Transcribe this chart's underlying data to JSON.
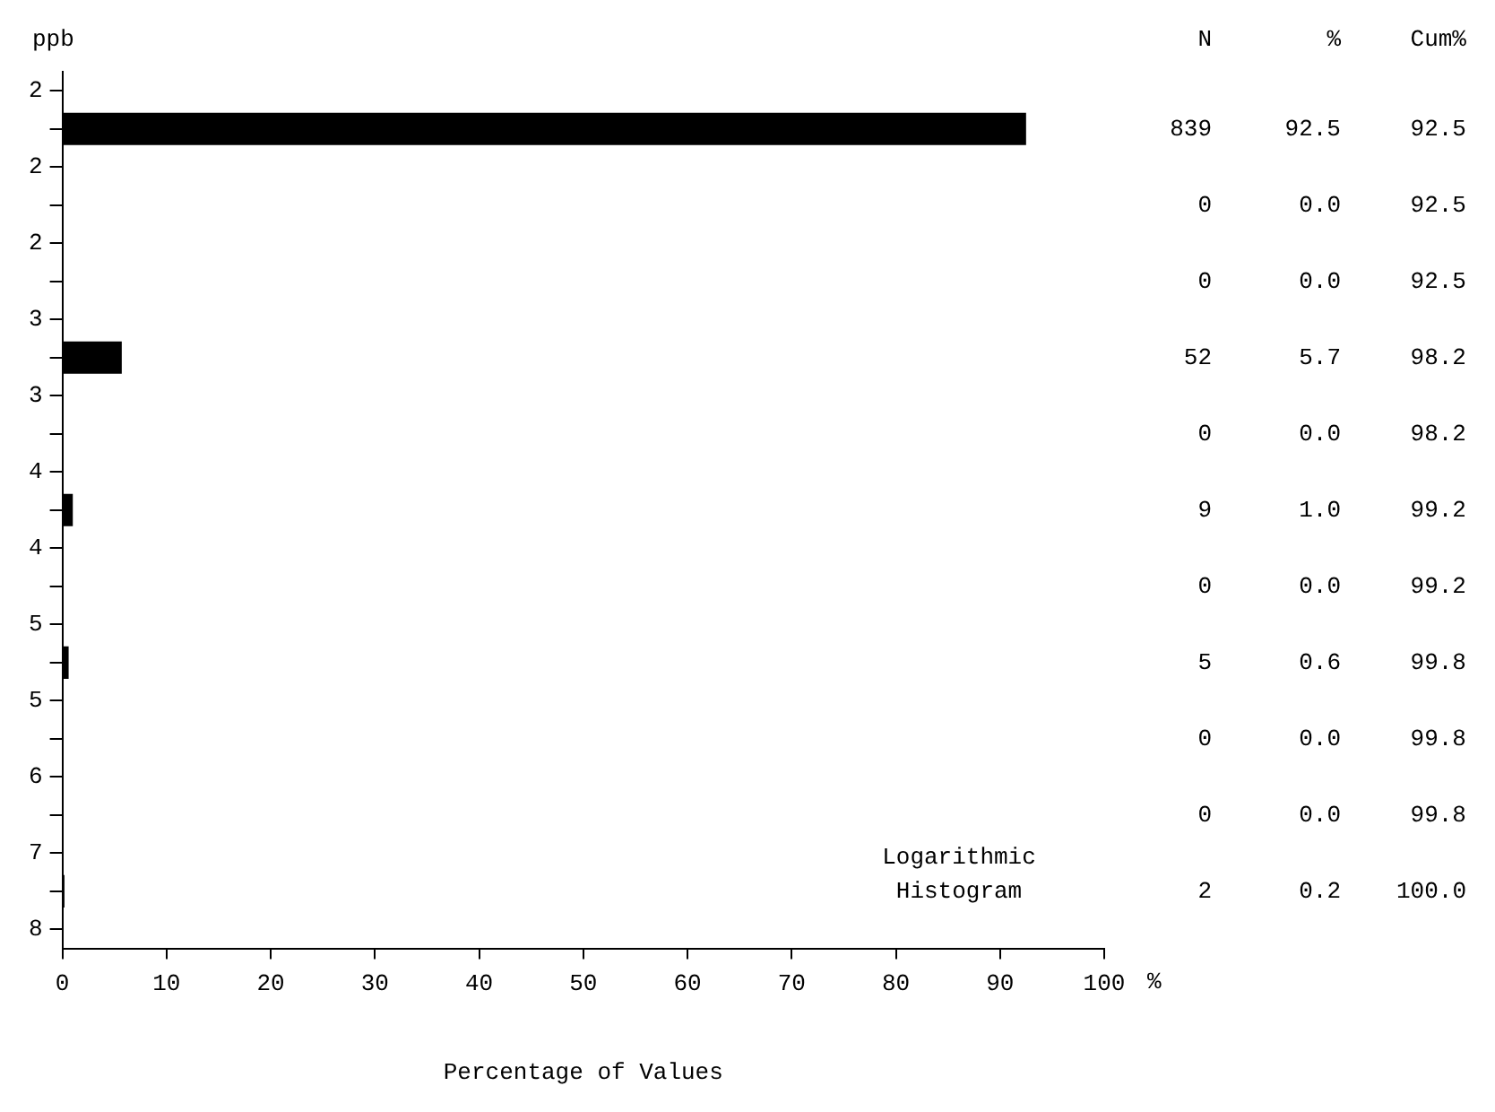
{
  "chart_data": {
    "type": "bar",
    "orientation": "horizontal",
    "ylabel": "ppb",
    "xlabel": "Percentage of Values",
    "categories": [
      "2",
      null,
      "2",
      null,
      "2",
      null,
      "3",
      null,
      "3",
      null,
      "4",
      null,
      "4",
      null,
      "5",
      null,
      "5",
      null,
      "6",
      null,
      "7",
      null,
      "8"
    ],
    "values": [
      null,
      92.5,
      null,
      0.0,
      null,
      0.0,
      null,
      5.7,
      null,
      0.0,
      null,
      1.0,
      null,
      0.0,
      null,
      0.6,
      null,
      0.0,
      null,
      0.0,
      null,
      0.2,
      null
    ],
    "value_labels": [
      null,
      "92.5",
      null,
      "0.0",
      null,
      "0.0",
      null,
      "5.7",
      null,
      "0.0",
      null,
      "1.0",
      null,
      "0.0",
      null,
      "0.6",
      null,
      "0.0",
      null,
      "0.0",
      null,
      "0.2",
      null
    ],
    "color": "#000000",
    "xlim": [
      0,
      100
    ],
    "xticks": [
      0,
      10,
      20,
      30,
      40,
      50,
      60,
      70,
      80,
      90,
      100
    ],
    "grid": false,
    "legend": false,
    "annotations": [
      "N",
      "%",
      "Cum%",
      "Logarithmic\nHistogram",
      "%",
      "839",
      "92.5",
      "0",
      "92.5",
      "0",
      "92.5",
      "52",
      "98.2",
      "0",
      "98.2",
      "9",
      "99.2",
      "0",
      "99.2",
      "5",
      "99.8",
      "0",
      "99.8",
      "0",
      "99.8",
      "2",
      "100.0"
    ]
  }
}
